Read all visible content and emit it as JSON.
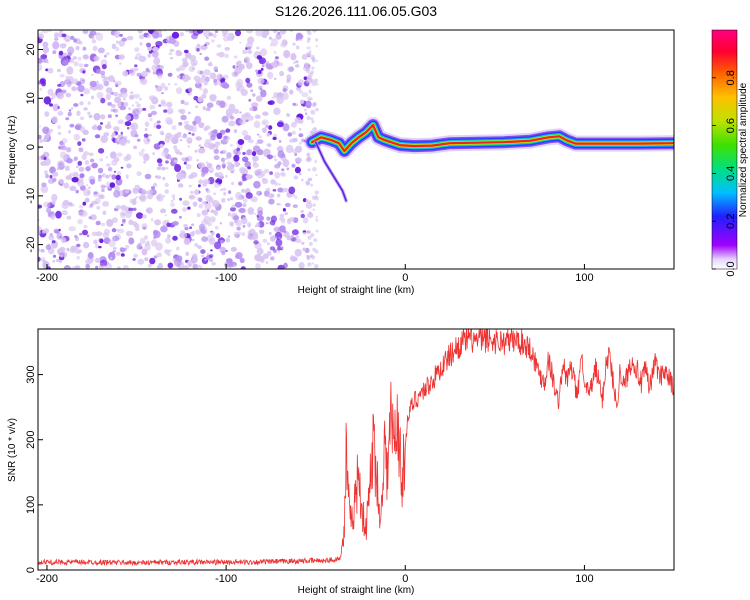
{
  "title": "S126.2026.111.06.05.G03",
  "colors": {
    "snr_line": "#ee3333",
    "ridge_core": "#ee2222",
    "scatter_light": "#d9c4f2",
    "scatter_dark": "#6a1ee0"
  },
  "chart_data": [
    {
      "type": "heatmap",
      "name": "spectrogram",
      "xlabel": "Height of straight line (km)",
      "ylabel": "Frequency (Hz)",
      "xlim": [
        -205,
        150
      ],
      "ylim": [
        -25,
        24
      ],
      "xticks": [
        -200,
        -100,
        0,
        100
      ],
      "xtick_labels": [
        "-200",
        "-100",
        "0",
        "100"
      ],
      "yticks": [
        -20,
        -10,
        0,
        10,
        20
      ],
      "ytick_labels": [
        "-20",
        "-10",
        "0",
        "10",
        "20"
      ],
      "noise_region_x": [
        -205,
        -53
      ],
      "ridge_points": [
        [
          -52,
          1.0
        ],
        [
          -47,
          2.0
        ],
        [
          -42,
          1.5
        ],
        [
          -37,
          0.8
        ],
        [
          -34,
          -0.8
        ],
        [
          -30,
          0.8
        ],
        [
          -26,
          2.0
        ],
        [
          -22,
          3.0
        ],
        [
          -18,
          4.5
        ],
        [
          -15,
          2.0
        ],
        [
          -12,
          1.5
        ],
        [
          -8,
          1.0
        ],
        [
          -3,
          0.4
        ],
        [
          5,
          0.2
        ],
        [
          15,
          0.3
        ],
        [
          25,
          0.8
        ],
        [
          40,
          0.9
        ],
        [
          55,
          1.0
        ],
        [
          70,
          1.3
        ],
        [
          80,
          2.0
        ],
        [
          86,
          2.2
        ],
        [
          90,
          1.4
        ],
        [
          95,
          0.7
        ],
        [
          110,
          0.7
        ],
        [
          130,
          0.7
        ],
        [
          150,
          0.8
        ]
      ],
      "colorbar": {
        "label": "Normalized spectral amplitude",
        "range": [
          0,
          1
        ],
        "ticks": [
          0.0,
          0.2,
          0.4,
          0.6,
          0.8
        ],
        "tick_labels": [
          "0.0",
          "0.2",
          "0.4",
          "0.6",
          "0.8"
        ],
        "colormap": [
          "#ffffff",
          "#a000ff",
          "#2020ff",
          "#00c0ff",
          "#00e080",
          "#40e000",
          "#c0e000",
          "#ffc000",
          "#ff6000",
          "#ff0030",
          "#ff0080"
        ]
      }
    },
    {
      "type": "line",
      "name": "snr",
      "xlabel": "Height of straight line (km)",
      "ylabel": "SNR (10 * v/v)",
      "xlim": [
        -205,
        150
      ],
      "ylim": [
        0,
        370
      ],
      "xticks": [
        -200,
        -100,
        0,
        100
      ],
      "xtick_labels": [
        "-200",
        "-100",
        "0",
        "100"
      ],
      "yticks": [
        0,
        100,
        200,
        300
      ],
      "ytick_labels": [
        "0",
        "100",
        "200",
        "300"
      ],
      "series": [
        {
          "name": "SNR",
          "x": [
            -205,
            -190,
            -170,
            -150,
            -130,
            -110,
            -90,
            -70,
            -55,
            -40,
            -36,
            -34,
            -33,
            -32,
            -31,
            -30,
            -28,
            -26,
            -24,
            -22,
            -20,
            -18,
            -16,
            -14,
            -12,
            -10,
            -8,
            -6,
            -4,
            -2,
            0,
            2,
            5,
            10,
            15,
            20,
            25,
            30,
            35,
            40,
            45,
            50,
            55,
            60,
            65,
            70,
            75,
            78,
            80,
            82,
            84,
            86,
            88,
            90,
            92,
            94,
            96,
            98,
            100,
            102,
            104,
            106,
            108,
            110,
            112,
            114,
            116,
            118,
            120,
            122,
            124,
            126,
            128,
            130,
            132,
            134,
            136,
            138,
            140,
            142,
            144,
            146,
            148,
            150
          ],
          "y": [
            12,
            12,
            12,
            11,
            12,
            12,
            12,
            13,
            14,
            15,
            20,
            60,
            180,
            120,
            80,
            70,
            110,
            150,
            90,
            60,
            120,
            190,
            160,
            60,
            200,
            150,
            230,
            190,
            240,
            120,
            200,
            240,
            260,
            275,
            290,
            310,
            330,
            345,
            355,
            352,
            354,
            352,
            350,
            353,
            350,
            340,
            300,
            290,
            325,
            300,
            270,
            260,
            320,
            290,
            310,
            300,
            260,
            330,
            300,
            270,
            280,
            310,
            290,
            260,
            320,
            330,
            290,
            250,
            310,
            280,
            300,
            320,
            320,
            300,
            285,
            310,
            280,
            300,
            325,
            290,
            310,
            300,
            290,
            275
          ]
        }
      ]
    }
  ]
}
